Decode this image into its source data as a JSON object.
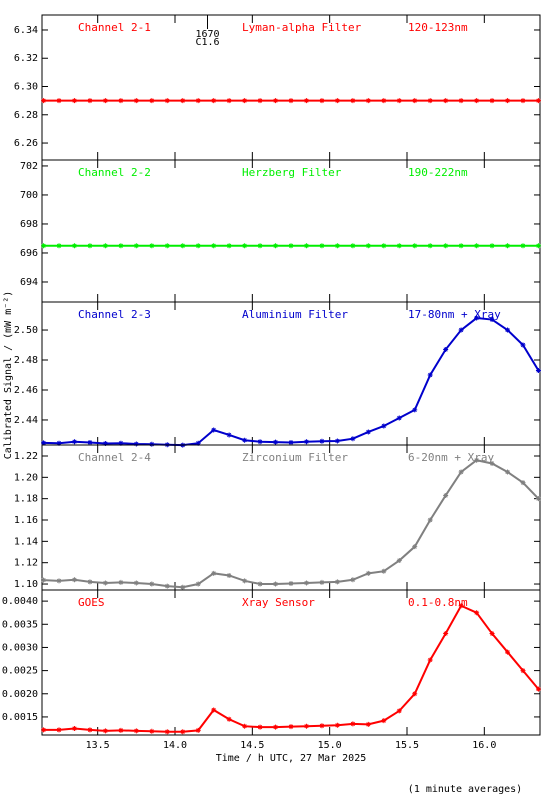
{
  "chart_data": [
    {
      "type": "scatter",
      "labels": [
        "Channel 2-1",
        "Lyman-alpha Filter",
        "120-123nm"
      ],
      "annotation": {
        "x": 14.21,
        "text": [
          "1670",
          "C1.6"
        ]
      },
      "x": [
        13.15,
        13.25,
        13.35,
        13.45,
        13.55,
        13.65,
        13.75,
        13.85,
        13.95,
        14.05,
        14.15,
        14.25,
        14.35,
        14.45,
        14.55,
        14.65,
        14.75,
        14.85,
        14.95,
        15.05,
        15.15,
        15.25,
        15.35,
        15.45,
        15.55,
        15.65,
        15.75,
        15.85,
        15.95,
        16.05,
        16.15,
        16.25,
        16.35
      ],
      "xlim": [
        13.14,
        16.36
      ],
      "ylim": [
        6.248,
        6.3506
      ],
      "yticks": [
        6.26,
        6.28,
        {
          "value": 6.3,
          "label": "6.30"
        },
        6.32,
        6.34
      ],
      "series": [
        {
          "color": "#ff0000",
          "values": [
            6.29,
            6.29,
            6.29,
            6.29,
            6.29,
            6.29,
            6.29,
            6.29,
            6.29,
            6.29,
            6.29,
            6.29,
            6.29,
            6.29,
            6.29,
            6.29,
            6.29,
            6.29,
            6.29,
            6.29,
            6.29,
            6.29,
            6.29,
            6.29,
            6.29,
            6.29,
            6.29,
            6.29,
            6.29,
            6.29,
            6.29,
            6.29,
            6.29
          ]
        }
      ]
    },
    {
      "type": "scatter",
      "labels": [
        "Channel 2-2",
        "Herzberg Filter",
        "190-222nm"
      ],
      "x": [
        13.15,
        13.25,
        13.35,
        13.45,
        13.55,
        13.65,
        13.75,
        13.85,
        13.95,
        14.05,
        14.15,
        14.25,
        14.35,
        14.45,
        14.55,
        14.65,
        14.75,
        14.85,
        14.95,
        15.05,
        15.15,
        15.25,
        15.35,
        15.45,
        15.55,
        15.65,
        15.75,
        15.85,
        15.95,
        16.05,
        16.15,
        16.25,
        16.35
      ],
      "xlim": [
        13.14,
        16.36
      ],
      "ylim": [
        692.62,
        702.41
      ],
      "yticks": [
        694,
        696,
        698,
        700,
        702
      ],
      "series": [
        {
          "color": "#00ee00",
          "values": [
            696.5,
            696.5,
            696.5,
            696.5,
            696.5,
            696.5,
            696.5,
            696.5,
            696.5,
            696.5,
            696.5,
            696.5,
            696.5,
            696.5,
            696.5,
            696.5,
            696.5,
            696.5,
            696.5,
            696.5,
            696.5,
            696.5,
            696.5,
            696.5,
            696.5,
            696.5,
            696.5,
            696.5,
            696.5,
            696.5,
            696.5,
            696.5,
            696.5
          ]
        }
      ]
    },
    {
      "type": "scatter",
      "labels": [
        "Channel 2-3",
        "Aluminium Filter",
        "17-80nm + Xray"
      ],
      "ylabel": "Calibrated Signal / (mW m⁻²)",
      "x": [
        13.15,
        13.25,
        13.35,
        13.45,
        13.55,
        13.65,
        13.75,
        13.85,
        13.95,
        14.05,
        14.15,
        14.25,
        14.35,
        14.45,
        14.55,
        14.65,
        14.75,
        14.85,
        14.95,
        15.05,
        15.15,
        15.25,
        15.35,
        15.45,
        15.55,
        15.65,
        15.75,
        15.85,
        15.95,
        16.05,
        16.15,
        16.25,
        16.35
      ],
      "xlim": [
        13.14,
        16.36
      ],
      "ylim": [
        2.4233,
        2.5187
      ],
      "yticks": [
        2.44,
        2.46,
        2.48,
        {
          "value": 2.5,
          "label": "2.50"
        }
      ],
      "series": [
        {
          "color": "#0000cc",
          "values": [
            2.4247,
            2.4245,
            2.4255,
            2.425,
            2.4243,
            2.4245,
            2.424,
            2.4238,
            2.4235,
            2.4232,
            2.4245,
            2.4333,
            2.43,
            2.4265,
            2.4255,
            2.4252,
            2.425,
            2.4255,
            2.4258,
            2.426,
            2.4275,
            2.432,
            2.436,
            2.4413,
            2.4467,
            2.47,
            2.487,
            2.5,
            2.508,
            2.507,
            2.5,
            2.49,
            2.473
          ]
        }
      ]
    },
    {
      "type": "scatter",
      "labels": [
        "Channel 2-4",
        "Zirconium Filter",
        "6-20nm + Xray"
      ],
      "x": [
        13.15,
        13.25,
        13.35,
        13.45,
        13.55,
        13.65,
        13.75,
        13.85,
        13.95,
        14.05,
        14.15,
        14.25,
        14.35,
        14.45,
        14.55,
        14.65,
        14.75,
        14.85,
        14.95,
        15.05,
        15.15,
        15.25,
        15.35,
        15.45,
        15.55,
        15.65,
        15.75,
        15.85,
        15.95,
        16.05,
        16.15,
        16.25,
        16.35
      ],
      "xlim": [
        13.14,
        16.36
      ],
      "ylim": [
        1.0944,
        1.2303
      ],
      "yticks": [
        {
          "value": 1.1,
          "label": "1.10"
        },
        1.12,
        1.14,
        1.16,
        1.18,
        {
          "value": 1.2,
          "label": "1.20"
        },
        1.22
      ],
      "series": [
        {
          "color": "#808080",
          "values": [
            1.1037,
            1.103,
            1.104,
            1.102,
            1.101,
            1.1015,
            1.101,
            1.1,
            1.098,
            1.097,
            1.1,
            1.11,
            1.108,
            1.103,
            1.1,
            1.1,
            1.1005,
            1.101,
            1.1015,
            1.102,
            1.104,
            1.11,
            1.112,
            1.122,
            1.135,
            1.16,
            1.183,
            1.205,
            1.216,
            1.213,
            1.205,
            1.195,
            1.18
          ]
        }
      ]
    },
    {
      "type": "scatter",
      "labels": [
        "GOES",
        "Xray Sensor",
        "0.1-0.8nm"
      ],
      "xlabel": "Time / h UTC, 27 Mar 2025",
      "note": "(1 minute averages)",
      "x": [
        13.15,
        13.25,
        13.35,
        13.45,
        13.55,
        13.65,
        13.75,
        13.85,
        13.95,
        14.05,
        14.15,
        14.25,
        14.35,
        14.45,
        14.55,
        14.65,
        14.75,
        14.85,
        14.95,
        15.05,
        15.15,
        15.25,
        15.35,
        15.45,
        15.55,
        15.65,
        15.75,
        15.85,
        15.95,
        16.05,
        16.15,
        16.25,
        16.35
      ],
      "xlim": [
        13.14,
        16.36
      ],
      "ylim": [
        0.00111,
        0.00424
      ],
      "xticks": [
        13.5,
        {
          "value": 14,
          "label": "14.0"
        },
        14.5,
        {
          "value": 15,
          "label": "15.0"
        },
        15.5,
        {
          "value": 16,
          "label": "16.0"
        }
      ],
      "yticks": [
        0.0015,
        {
          "value": 0.002,
          "label": "0.0020"
        },
        0.0025,
        {
          "value": 0.003,
          "label": "0.0030"
        },
        0.0035,
        {
          "value": 0.004,
          "label": "0.0040"
        }
      ],
      "series": [
        {
          "color": "#ff0000",
          "values": [
            0.00122,
            0.00122,
            0.00125,
            0.00122,
            0.0012,
            0.00121,
            0.0012,
            0.00119,
            0.00118,
            0.00118,
            0.00121,
            0.00165,
            0.00145,
            0.0013,
            0.00128,
            0.00128,
            0.00129,
            0.0013,
            0.00131,
            0.00132,
            0.00135,
            0.00134,
            0.00142,
            0.00163,
            0.002,
            0.00273,
            0.0033,
            0.0039,
            0.00375,
            0.0033,
            0.0029,
            0.0025,
            0.0021
          ]
        }
      ]
    }
  ]
}
